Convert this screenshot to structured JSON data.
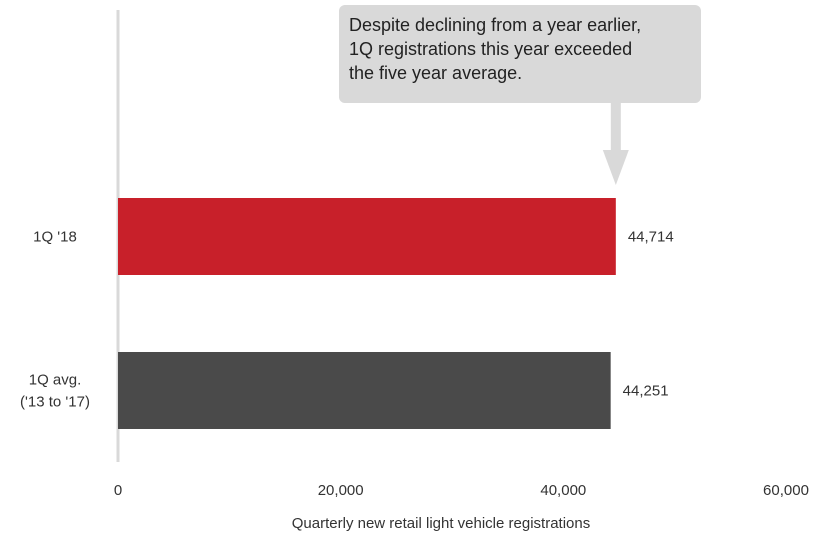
{
  "chart_data": {
    "type": "bar",
    "orientation": "horizontal",
    "categories": [
      "1Q '18",
      "1Q avg. ('13 to '17)"
    ],
    "category_label_lines": [
      [
        "1Q '18"
      ],
      [
        "1Q avg.",
        "('13 to '17)"
      ]
    ],
    "values": [
      44714,
      44251
    ],
    "value_labels": [
      "44,714",
      "44,251"
    ],
    "colors": [
      "#c8202a",
      "#4a4a4a"
    ],
    "xlabel": "Quarterly new retail light vehicle registrations",
    "ylabel": "",
    "xlim": [
      0,
      60000
    ],
    "xticks": [
      0,
      20000,
      40000,
      60000
    ],
    "xtick_labels": [
      "0",
      "20,000",
      "40,000",
      "60,000"
    ],
    "grid": false,
    "annotation": {
      "lines": [
        "Despite declining from a year earlier,",
        "1Q registrations this year exceeded",
        "the five year average."
      ],
      "points_to_value": 44714,
      "background": "#d9d9d9",
      "arrow_color": "#d9d9d9"
    },
    "axis_color": "#d9d9d9"
  }
}
